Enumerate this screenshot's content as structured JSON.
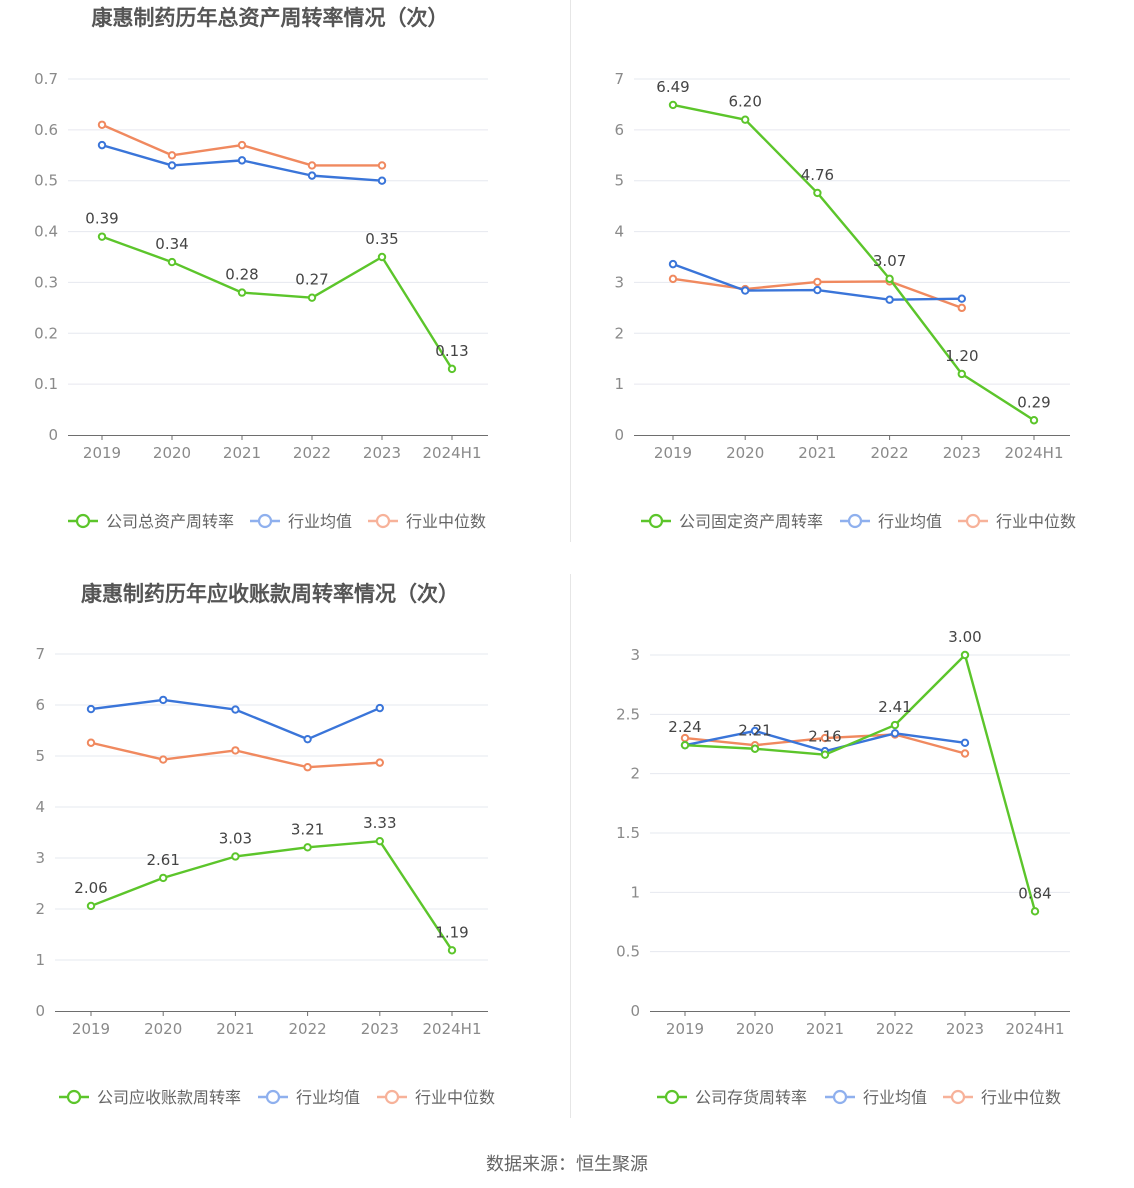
{
  "colors": {
    "company": "#5cc52b",
    "industry_avg": "#3a75d9",
    "industry_median": "#f0895f",
    "legend_avg": "#8fb0ee",
    "legend_median": "#f7b29a",
    "axis_text": "#8a8a8a",
    "grid": "#e6e8ef",
    "title": "#555555"
  },
  "source": "数据来源：恒生聚源",
  "chart_data": [
    {
      "type": "line",
      "title": "康惠制药历年总资产周转率情况（次）",
      "categories": [
        "2019",
        "2020",
        "2021",
        "2022",
        "2023",
        "2024H1"
      ],
      "ylim": [
        0,
        0.7
      ],
      "yticks": [
        "0",
        "0.1",
        "0.2",
        "0.3",
        "0.4",
        "0.5",
        "0.6",
        "0.7"
      ],
      "series": [
        {
          "name": "公司总资产周转率",
          "role": "company",
          "values": [
            0.39,
            0.34,
            0.28,
            0.27,
            0.35,
            0.13
          ],
          "labels": [
            "0.39",
            "0.34",
            "0.28",
            "0.27",
            "0.35",
            "0.13"
          ]
        },
        {
          "name": "行业均值",
          "role": "industry_avg",
          "values": [
            0.57,
            0.53,
            0.54,
            0.51,
            0.5,
            null
          ]
        },
        {
          "name": "行业中位数",
          "role": "industry_median",
          "values": [
            0.61,
            0.55,
            0.57,
            0.53,
            0.53,
            null
          ]
        }
      ]
    },
    {
      "type": "line",
      "title": "康惠制药历年固定资产周转率情况（次）",
      "categories": [
        "2019",
        "2020",
        "2021",
        "2022",
        "2023",
        "2024H1"
      ],
      "ylim": [
        0,
        7
      ],
      "yticks": [
        "0",
        "1",
        "2",
        "3",
        "4",
        "5",
        "6",
        "7"
      ],
      "series": [
        {
          "name": "公司固定资产周转率",
          "role": "company",
          "values": [
            6.49,
            6.2,
            4.76,
            3.07,
            1.2,
            0.29
          ],
          "labels": [
            "6.49",
            "6.20",
            "4.76",
            "3.07",
            "1.20",
            "0.29"
          ]
        },
        {
          "name": "行业均值",
          "role": "industry_avg",
          "values": [
            3.36,
            2.84,
            2.85,
            2.66,
            2.68,
            null
          ]
        },
        {
          "name": "行业中位数",
          "role": "industry_median",
          "values": [
            3.07,
            2.87,
            3.01,
            3.02,
            2.5,
            null
          ]
        }
      ]
    },
    {
      "type": "line",
      "title": "康惠制药历年应收账款周转率情况（次）",
      "categories": [
        "2019",
        "2020",
        "2021",
        "2022",
        "2023",
        "2024H1"
      ],
      "ylim": [
        0,
        7
      ],
      "yticks": [
        "0",
        "1",
        "2",
        "3",
        "4",
        "5",
        "6",
        "7"
      ],
      "series": [
        {
          "name": "公司应收账款周转率",
          "role": "company",
          "values": [
            2.06,
            2.61,
            3.03,
            3.21,
            3.33,
            1.19
          ],
          "labels": [
            "2.06",
            "2.61",
            "3.03",
            "3.21",
            "3.33",
            "1.19"
          ]
        },
        {
          "name": "行业均值",
          "role": "industry_avg",
          "values": [
            5.92,
            6.1,
            5.91,
            5.33,
            5.94,
            null
          ]
        },
        {
          "name": "行业中位数",
          "role": "industry_median",
          "values": [
            5.26,
            4.93,
            5.11,
            4.78,
            4.87,
            null
          ]
        }
      ]
    },
    {
      "type": "line",
      "title": "康惠制药历年存货周转率情况（次）",
      "categories": [
        "2019",
        "2020",
        "2021",
        "2022",
        "2023",
        "2024H1"
      ],
      "ylim": [
        0,
        3
      ],
      "yticks": [
        "0",
        "0.5",
        "1",
        "1.5",
        "2",
        "2.5",
        "3"
      ],
      "series": [
        {
          "name": "公司存货周转率",
          "role": "company",
          "values": [
            2.24,
            2.21,
            2.16,
            2.41,
            3.0,
            0.84
          ],
          "labels": [
            "2.24",
            "2.21",
            "2.16",
            "2.41",
            "3.00",
            "0.84"
          ]
        },
        {
          "name": "行业均值",
          "role": "industry_avg",
          "values": [
            2.24,
            2.36,
            2.19,
            2.34,
            2.26,
            null
          ]
        },
        {
          "name": "行业中位数",
          "role": "industry_median",
          "values": [
            2.3,
            2.24,
            2.3,
            2.33,
            2.17,
            null
          ]
        }
      ]
    }
  ]
}
